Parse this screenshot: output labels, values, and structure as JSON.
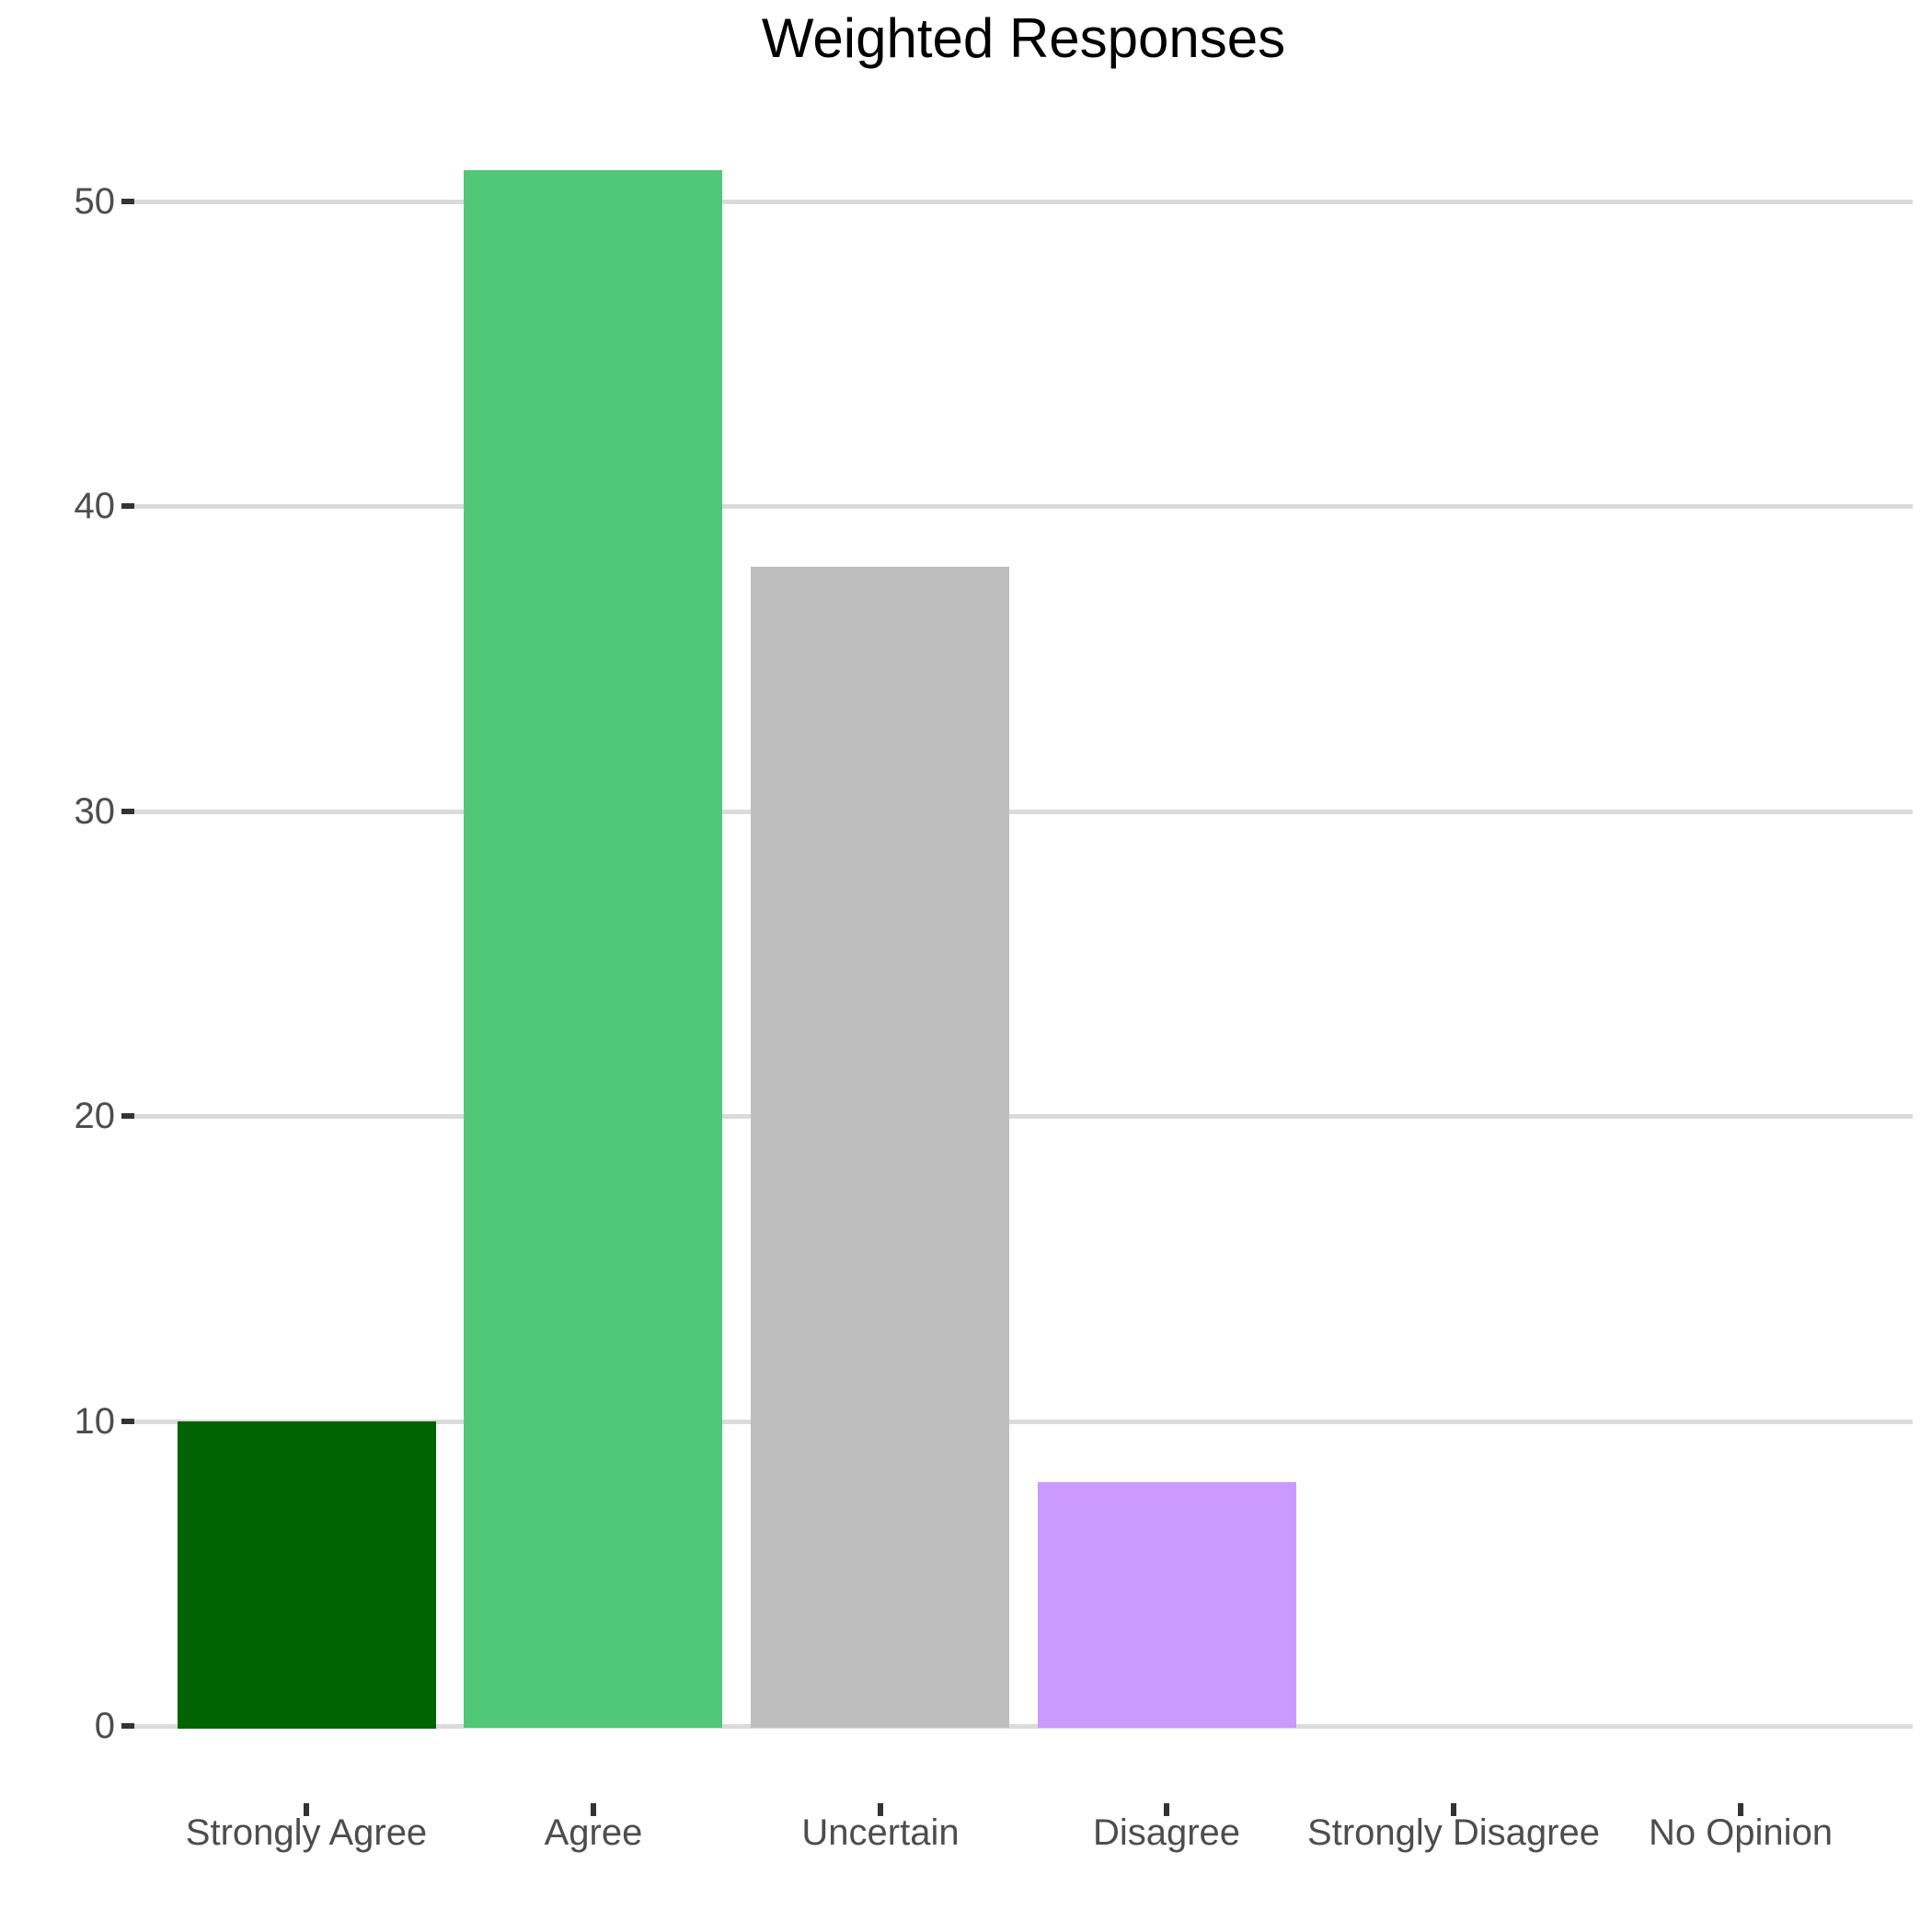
{
  "page": {
    "background": "#FFFFFF"
  },
  "chart_data": {
    "type": "bar",
    "title": "Weighted Responses",
    "categories": [
      "Strongly Agree",
      "Agree",
      "Uncertain",
      "Disagree",
      "Strongly Disagree",
      "No Opinion"
    ],
    "values": [
      10,
      51,
      38,
      8,
      0,
      0
    ],
    "bar_colors": [
      "#006400",
      "#50C878",
      "#BEBEBE",
      "#CC99FF",
      null,
      null
    ],
    "xlabel": "",
    "ylabel": "",
    "ylim": [
      0,
      51
    ],
    "yticks": [
      0,
      10,
      20,
      30,
      40,
      50
    ],
    "grid": "horizontal-major-only",
    "legend": "none",
    "colors": {
      "background": "#FFFFFF",
      "grid": "#DBDBDB",
      "tick": "#333333",
      "axis_text": "#4D4D4D",
      "title": "#000000"
    }
  }
}
